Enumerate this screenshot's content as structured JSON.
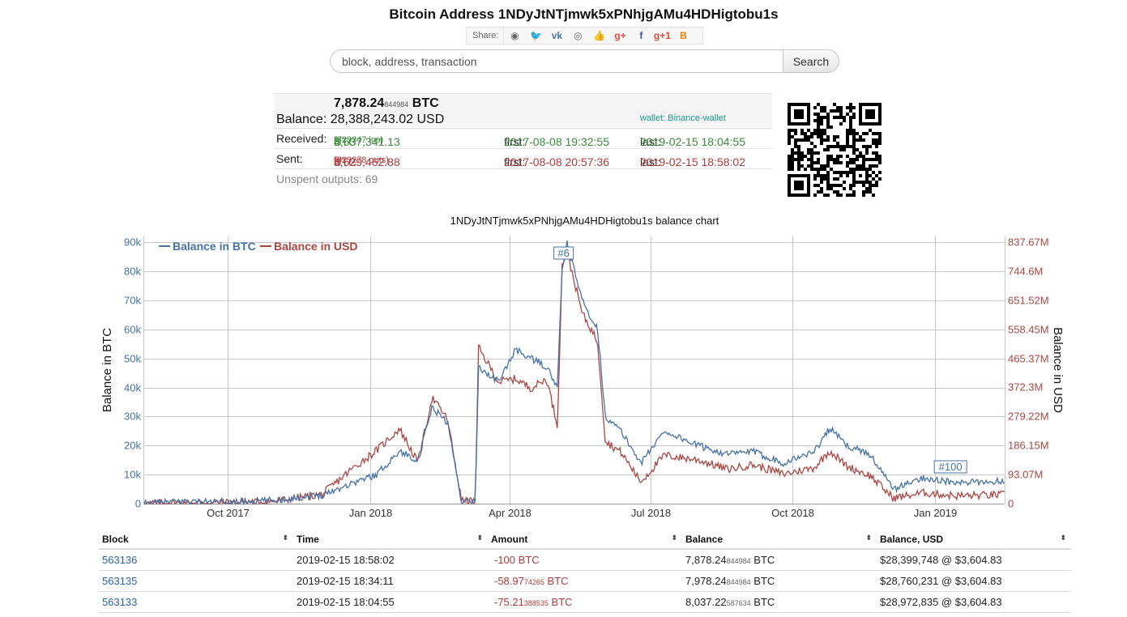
{
  "page": {
    "title": "Bitcoin Address 1NDyJtNTjmwk5xPNhjgAMu4HDHigtobu1s"
  },
  "share": {
    "label": "Share:",
    "buttons": [
      {
        "name": "reddit-icon",
        "glyph": "◉",
        "color": "#666666"
      },
      {
        "name": "twitter-icon",
        "glyph": "🐦",
        "color": "#55acee"
      },
      {
        "name": "vk-icon",
        "glyph": "vk",
        "color": "#4a76a8"
      },
      {
        "name": "weibo-icon",
        "glyph": "◎",
        "color": "#666666"
      },
      {
        "name": "like-icon",
        "glyph": "👍",
        "color": "#4a76a8"
      },
      {
        "name": "googleplus-icon",
        "glyph": "g+",
        "color": "#dd4b39"
      },
      {
        "name": "facebook-icon",
        "glyph": "f",
        "color": "#3b5998"
      },
      {
        "name": "gplus-one-icon",
        "glyph": "g+1",
        "color": "#dd4b39"
      },
      {
        "name": "blogger-icon",
        "glyph": "B",
        "color": "#f57d00"
      }
    ]
  },
  "search": {
    "placeholder": "block, address, transaction",
    "button": "Search"
  },
  "summary": {
    "balance_label": "Balance:",
    "balance_btc_main": "7,878.24",
    "balance_btc_small": "844984",
    "balance_btc_unit": "BTC",
    "balance_usd": "28,388,243.02 USD",
    "wallet": "wallet: Binance-wallet",
    "received_label": "Received:",
    "received_main": "4,637,341.13",
    "received_small": "37",
    "received_unit": "BTC",
    "received_count": "(323347 ins)",
    "received_first_label": "first:",
    "received_first": "2017-08-08 19:32:55",
    "received_last_label": "last:",
    "received_last": "2019-02-15 18:04:55",
    "sent_label": "Sent:",
    "sent_main": "4,629,462.88",
    "sent_small": "53",
    "sent_unit": "BTC",
    "sent_count": "(323278 outs)",
    "sent_first_label": "first:",
    "sent_first": "2017-08-08 20:57:36",
    "sent_last_label": "last:",
    "sent_last": "2019-02-15 18:58:02",
    "unspent": "Unspent outputs: 69"
  },
  "chart_title": "1NDyJtNTjmwk5xPNhjgAMu4HDHigtobu1s balance chart",
  "chart_data": {
    "type": "line",
    "title": "1NDyJtNTjmwk5xPNhjgAMu4HDHigtobu1s balance chart",
    "ylabel_left": "Balance in BTC",
    "ylabel_right": "Balance in USD",
    "legend_position": "top-left",
    "grid": true,
    "x_ticks": [
      "Oct 2017",
      "Jan 2018",
      "Apr 2018",
      "Jul 2018",
      "Oct 2018",
      "Jan 2019"
    ],
    "x_range": [
      "2017-08-08",
      "2019-02-15"
    ],
    "y_left_ticks": [
      "0",
      "10k",
      "20k",
      "30k",
      "40k",
      "50k",
      "60k",
      "70k",
      "80k",
      "90k"
    ],
    "y_left_range": [
      0,
      92000
    ],
    "y_right_ticks": [
      "0",
      "93.07M",
      "186.15M",
      "279.22M",
      "372.3M",
      "465.37M",
      "558.45M",
      "651.52M",
      "744.6M",
      "837.67M"
    ],
    "y_right_range": [
      0,
      856000000
    ],
    "annotations": [
      {
        "label": "#6",
        "date": "2018-05-06",
        "series": "Balance in BTC"
      },
      {
        "label": "#100",
        "date": "2019-01-11",
        "series": "Balance in BTC"
      }
    ],
    "series": [
      {
        "name": "Balance in BTC",
        "color": "#4572a7",
        "points": [
          [
            "2017-08-08",
            0
          ],
          [
            "2017-09-01",
            800
          ],
          [
            "2017-10-01",
            500
          ],
          [
            "2017-11-01",
            1200
          ],
          [
            "2017-12-01",
            3000
          ],
          [
            "2017-12-20",
            7000
          ],
          [
            "2018-01-05",
            10000
          ],
          [
            "2018-01-20",
            18000
          ],
          [
            "2018-02-01",
            15000
          ],
          [
            "2018-02-10",
            33000
          ],
          [
            "2018-02-20",
            28000
          ],
          [
            "2018-03-01",
            1000
          ],
          [
            "2018-03-10",
            800
          ],
          [
            "2018-03-12",
            47000
          ],
          [
            "2018-03-25",
            42000
          ],
          [
            "2018-04-05",
            53000
          ],
          [
            "2018-04-15",
            50000
          ],
          [
            "2018-04-25",
            47000
          ],
          [
            "2018-05-02",
            40000
          ],
          [
            "2018-05-05",
            80000
          ],
          [
            "2018-05-08",
            90000
          ],
          [
            "2018-05-18",
            70000
          ],
          [
            "2018-05-28",
            60000
          ],
          [
            "2018-06-02",
            30000
          ],
          [
            "2018-06-12",
            25000
          ],
          [
            "2018-06-25",
            14000
          ],
          [
            "2018-07-10",
            25000
          ],
          [
            "2018-08-01",
            20000
          ],
          [
            "2018-08-20",
            17000
          ],
          [
            "2018-09-05",
            18000
          ],
          [
            "2018-09-25",
            14000
          ],
          [
            "2018-10-15",
            18000
          ],
          [
            "2018-10-25",
            26000
          ],
          [
            "2018-11-05",
            20000
          ],
          [
            "2018-11-20",
            17000
          ],
          [
            "2018-12-05",
            5000
          ],
          [
            "2018-12-25",
            9000
          ],
          [
            "2019-01-15",
            7000
          ],
          [
            "2019-02-15",
            7878
          ]
        ]
      },
      {
        "name": "Balance in USD",
        "color": "#aa4643",
        "points": [
          [
            "2017-08-08",
            0
          ],
          [
            "2017-09-01",
            2000000
          ],
          [
            "2017-10-01",
            3000000
          ],
          [
            "2017-11-01",
            8000000
          ],
          [
            "2017-12-01",
            30000000
          ],
          [
            "2017-12-20",
            110000000
          ],
          [
            "2018-01-05",
            170000000
          ],
          [
            "2018-01-20",
            240000000
          ],
          [
            "2018-02-01",
            130000000
          ],
          [
            "2018-02-10",
            340000000
          ],
          [
            "2018-02-20",
            270000000
          ],
          [
            "2018-03-01",
            10000000
          ],
          [
            "2018-03-10",
            6000000
          ],
          [
            "2018-03-12",
            500000000
          ],
          [
            "2018-03-25",
            390000000
          ],
          [
            "2018-04-05",
            400000000
          ],
          [
            "2018-04-15",
            370000000
          ],
          [
            "2018-04-25",
            400000000
          ],
          [
            "2018-05-02",
            250000000
          ],
          [
            "2018-05-05",
            760000000
          ],
          [
            "2018-05-08",
            810000000
          ],
          [
            "2018-05-18",
            610000000
          ],
          [
            "2018-05-28",
            520000000
          ],
          [
            "2018-06-02",
            200000000
          ],
          [
            "2018-06-12",
            165000000
          ],
          [
            "2018-06-25",
            70000000
          ],
          [
            "2018-07-10",
            155000000
          ],
          [
            "2018-08-01",
            140000000
          ],
          [
            "2018-08-20",
            110000000
          ],
          [
            "2018-09-05",
            125000000
          ],
          [
            "2018-09-25",
            95000000
          ],
          [
            "2018-10-15",
            115000000
          ],
          [
            "2018-10-25",
            170000000
          ],
          [
            "2018-11-05",
            120000000
          ],
          [
            "2018-11-20",
            90000000
          ],
          [
            "2018-12-05",
            18000000
          ],
          [
            "2018-12-25",
            35000000
          ],
          [
            "2019-01-15",
            25000000
          ],
          [
            "2019-02-15",
            28388243
          ]
        ]
      }
    ]
  },
  "table": {
    "headers": [
      "Block",
      "Time",
      "Amount",
      "Balance",
      "Balance, USD"
    ],
    "sort_icon": "⬍",
    "rows": [
      {
        "block": "563136",
        "time": "2019-02-15 18:58:02",
        "amount_main": "-100",
        "amount_small": "",
        "amount_unit": "BTC",
        "balance_main": "7,878.24",
        "balance_small": "844984",
        "balance_unit": "BTC",
        "balance_usd": "$28,399,748 @ $3,604.83"
      },
      {
        "block": "563135",
        "time": "2019-02-15 18:34:11",
        "amount_main": "-58.97",
        "amount_small": "74265",
        "amount_unit": "BTC",
        "balance_main": "7,978.24",
        "balance_small": "844984",
        "balance_unit": "BTC",
        "balance_usd": "$28,760,231 @ $3,604.83"
      },
      {
        "block": "563133",
        "time": "2019-02-15 18:04:55",
        "amount_main": "-75.21",
        "amount_small": "388535",
        "amount_unit": "BTC",
        "balance_main": "8,037.22",
        "balance_small": "587634",
        "balance_unit": "BTC",
        "balance_usd": "$28,972,835 @ $3,604.83"
      }
    ]
  }
}
